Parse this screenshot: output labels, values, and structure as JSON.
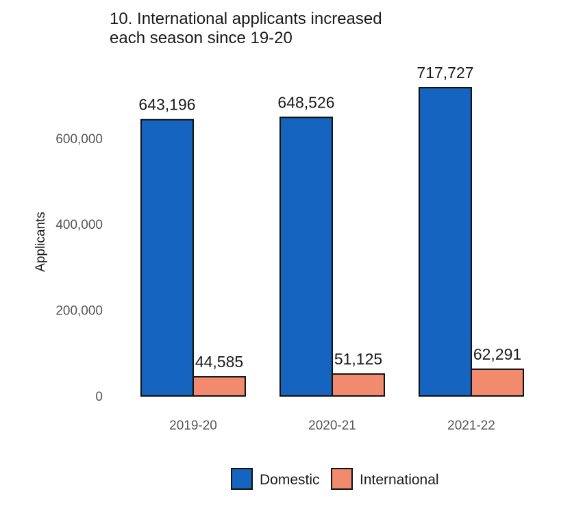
{
  "chart_data": {
    "type": "bar",
    "title_lines": [
      "10. International applicants increased",
      "each season since 19-20"
    ],
    "xlabel": "",
    "ylabel": "Applicants",
    "categories": [
      "2019-20",
      "2020-21",
      "2021-22"
    ],
    "series": [
      {
        "name": "Domestic",
        "color": "#1565c0",
        "values": [
          643196,
          648526,
          717727
        ],
        "labels": [
          "643,196",
          "648,526",
          "717,727"
        ]
      },
      {
        "name": "International",
        "color": "#f28b6e",
        "values": [
          44585,
          51125,
          62291
        ],
        "labels": [
          "44,585",
          "51,125",
          "62,291"
        ]
      }
    ],
    "ylim": [
      0,
      717727
    ],
    "yticks": [
      {
        "value": 0,
        "label": "0"
      },
      {
        "value": 200000,
        "label": "200,000"
      },
      {
        "value": 400000,
        "label": "400,000"
      },
      {
        "value": 600000,
        "label": "600,000"
      }
    ],
    "grid": false,
    "legend_position": "bottom"
  }
}
